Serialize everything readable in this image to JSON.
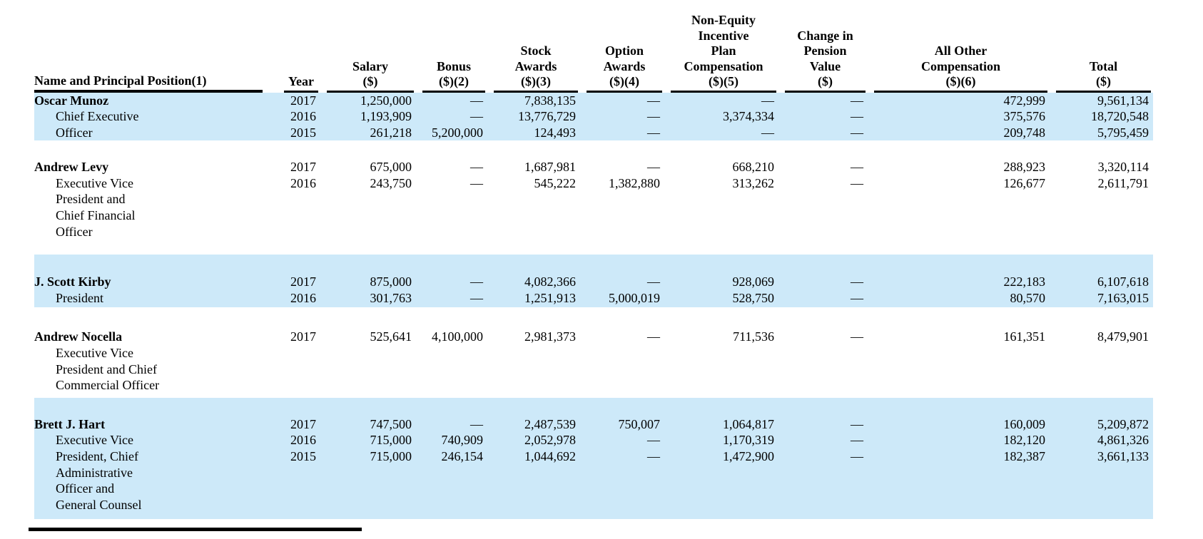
{
  "document": {
    "kind": "summary-compensation-table",
    "colors": {
      "highlight": "#CDE9F9",
      "text": "#000000",
      "rule": "#000000"
    }
  },
  "table": {
    "columns": [
      {
        "id": "name",
        "align": "left",
        "header_lines": [
          "Name and Principal Position(1)"
        ]
      },
      {
        "id": "year",
        "align": "right",
        "header_lines": [
          "Year"
        ]
      },
      {
        "id": "salary",
        "align": "right",
        "header_lines": [
          "Salary",
          "($)"
        ]
      },
      {
        "id": "bonus",
        "align": "right",
        "header_lines": [
          "Bonus",
          "($)(2)"
        ]
      },
      {
        "id": "stock",
        "align": "right",
        "header_lines": [
          "Stock",
          "Awards",
          "($)(3)"
        ]
      },
      {
        "id": "option",
        "align": "right",
        "header_lines": [
          "Option",
          "Awards",
          "($)(4)"
        ]
      },
      {
        "id": "neip",
        "align": "right",
        "header_lines": [
          "Non-Equity",
          "Incentive",
          "Plan",
          "Compensation",
          "($)(5)"
        ]
      },
      {
        "id": "pension",
        "align": "right",
        "header_lines": [
          "Change in",
          "Pension",
          "Value",
          "($)"
        ]
      },
      {
        "id": "aoc",
        "align": "right",
        "header_lines": [
          "All Other",
          "Compensation",
          "($)(6)"
        ]
      },
      {
        "id": "total",
        "align": "right",
        "header_lines": [
          "Total",
          "($)"
        ]
      }
    ],
    "blocks": [
      {
        "key": "munoz",
        "name": "Oscar Munoz",
        "position_lines": [
          "Chief Executive",
          "Officer"
        ],
        "highlighted": true,
        "spacer_after": true,
        "rows": [
          {
            "year": "2017",
            "salary": "1,250,000",
            "bonus": "—",
            "stock": "7,838,135",
            "option": "—",
            "neip": "—",
            "pension": "—",
            "aoc": "472,999",
            "total": "9,561,134"
          },
          {
            "year": "2016",
            "salary": "1,193,909",
            "bonus": "—",
            "stock": "13,776,729",
            "option": "—",
            "neip": "3,374,334",
            "pension": "—",
            "aoc": "375,576",
            "total": "18,720,548"
          },
          {
            "year": "2015",
            "salary": "261,218",
            "bonus": "5,200,000",
            "stock": "124,493",
            "option": "—",
            "neip": "—",
            "pension": "—",
            "aoc": "209,748",
            "total": "5,795,459"
          }
        ]
      },
      {
        "key": "levy",
        "name": "Andrew Levy",
        "position_lines": [
          "Executive Vice",
          "President and",
          "Chief Financial",
          "Officer"
        ],
        "highlighted": false,
        "spacer_after": false,
        "rows": [
          {
            "year": "2017",
            "salary": "675,000",
            "bonus": "—",
            "stock": "1,687,981",
            "option": "—",
            "neip": "668,210",
            "pension": "—",
            "aoc": "288,923",
            "total": "3,320,114"
          },
          {
            "year": "2016",
            "salary": "243,750",
            "bonus": "—",
            "stock": "545,222",
            "option": "1,382,880",
            "neip": "313,262",
            "pension": "—",
            "aoc": "126,677",
            "total": "2,611,791"
          }
        ]
      },
      {
        "key": "kirby",
        "name": "J. Scott Kirby",
        "position_lines": [
          "President"
        ],
        "highlighted": true,
        "spacer_after": false,
        "rows": [
          {
            "year": "2017",
            "salary": "875,000",
            "bonus": "—",
            "stock": "4,082,366",
            "option": "—",
            "neip": "928,069",
            "pension": "—",
            "aoc": "222,183",
            "total": "6,107,618"
          },
          {
            "year": "2016",
            "salary": "301,763",
            "bonus": "—",
            "stock": "1,251,913",
            "option": "5,000,019",
            "neip": "528,750",
            "pension": "—",
            "aoc": "80,570",
            "total": "7,163,015"
          }
        ]
      },
      {
        "key": "nocella",
        "name": "Andrew Nocella",
        "position_lines": [
          "Executive Vice",
          "President and Chief",
          "Commercial Officer"
        ],
        "highlighted": false,
        "spacer_after": false,
        "rows": [
          {
            "year": "2017",
            "salary": "525,641",
            "bonus": "4,100,000",
            "stock": "2,981,373",
            "option": "—",
            "neip": "711,536",
            "pension": "—",
            "aoc": "161,351",
            "total": "8,479,901"
          }
        ]
      },
      {
        "key": "hart",
        "name": "Brett J. Hart",
        "position_lines": [
          "Executive Vice",
          "President, Chief",
          "Administrative",
          "Officer and",
          "General Counsel"
        ],
        "highlighted": true,
        "spacer_after": false,
        "rows": [
          {
            "year": "2017",
            "salary": "747,500",
            "bonus": "—",
            "stock": "2,487,539",
            "option": "750,007",
            "neip": "1,064,817",
            "pension": "—",
            "aoc": "160,009",
            "total": "5,209,872"
          },
          {
            "year": "2016",
            "salary": "715,000",
            "bonus": "740,909",
            "stock": "2,052,978",
            "option": "—",
            "neip": "1,170,319",
            "pension": "—",
            "aoc": "182,120",
            "total": "4,861,326"
          },
          {
            "year": "2015",
            "salary": "715,000",
            "bonus": "246,154",
            "stock": "1,044,692",
            "option": "—",
            "neip": "1,472,900",
            "pension": "—",
            "aoc": "182,387",
            "total": "3,661,133"
          }
        ]
      }
    ]
  }
}
